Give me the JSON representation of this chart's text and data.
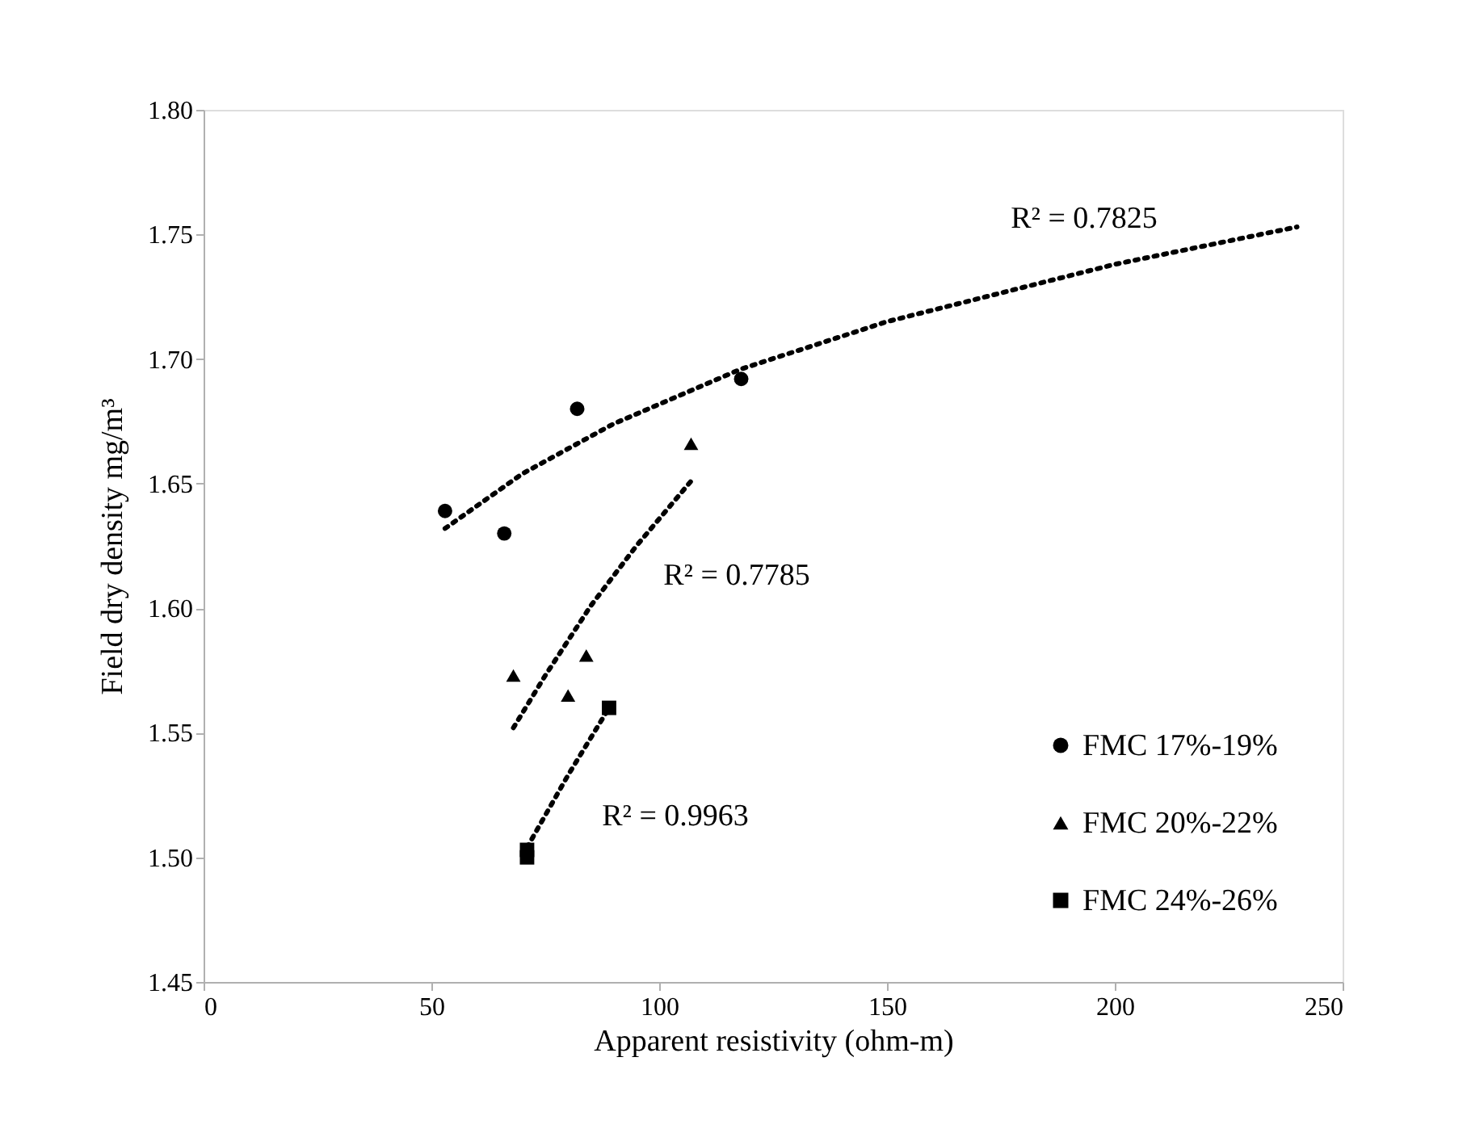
{
  "chart_data": {
    "type": "scatter",
    "xlabel": "Apparent resistivity (ohm-m)",
    "ylabel": "Field dry density mg/m³",
    "xlim": [
      0,
      250
    ],
    "xticks": [
      0,
      50,
      100,
      150,
      200,
      250
    ],
    "ylim": [
      1.45,
      1.8
    ],
    "yticks": [
      1.45,
      {
        "value": 1.5,
        "label": "1.50"
      },
      1.55,
      {
        "value": 1.6,
        "label": "1.60"
      },
      1.65,
      {
        "value": 1.7,
        "label": "1.70"
      },
      1.75,
      {
        "value": 1.8,
        "label": "1.80"
      }
    ],
    "grid": false,
    "legend": "bottom right",
    "series": [
      {
        "name": "FMC 17%-19%",
        "marker": "circle",
        "color": "#000000",
        "x": [
          53,
          66,
          82,
          118
        ],
        "values": [
          1.639,
          1.63,
          1.68,
          1.692
        ]
      },
      {
        "name": "FMC 20%-22%",
        "marker": "triangle",
        "color": "#000000",
        "x": [
          68,
          80,
          84,
          107
        ],
        "values": [
          1.573,
          1.565,
          1.581,
          1.666
        ]
      },
      {
        "name": "FMC 24%-26%",
        "marker": "square",
        "color": "#000000",
        "x": [
          71,
          71,
          89
        ],
        "values": [
          1.503,
          1.5,
          1.56
        ]
      },
      {
        "type": "line",
        "line_style": "dotted",
        "marker": "none",
        "color": "#000000",
        "x": [
          53,
          70,
          90,
          118,
          150,
          200,
          240
        ],
        "values": [
          1.632,
          1.654,
          1.674,
          1.696,
          1.715,
          1.738,
          1.753
        ]
      },
      {
        "type": "line",
        "line_style": "dotted",
        "marker": "none",
        "color": "#000000",
        "x": [
          68,
          75,
          85,
          95,
          107
        ],
        "values": [
          1.552,
          1.573,
          1.601,
          1.625,
          1.651
        ]
      },
      {
        "type": "line",
        "line_style": "dotted",
        "marker": "none",
        "color": "#000000",
        "x": [
          71,
          80,
          89
        ],
        "values": [
          1.504,
          1.533,
          1.56
        ]
      }
    ],
    "annotations": [
      "R² = 0.7825",
      "R² = 0.7785",
      "R² = 0.9963"
    ]
  }
}
